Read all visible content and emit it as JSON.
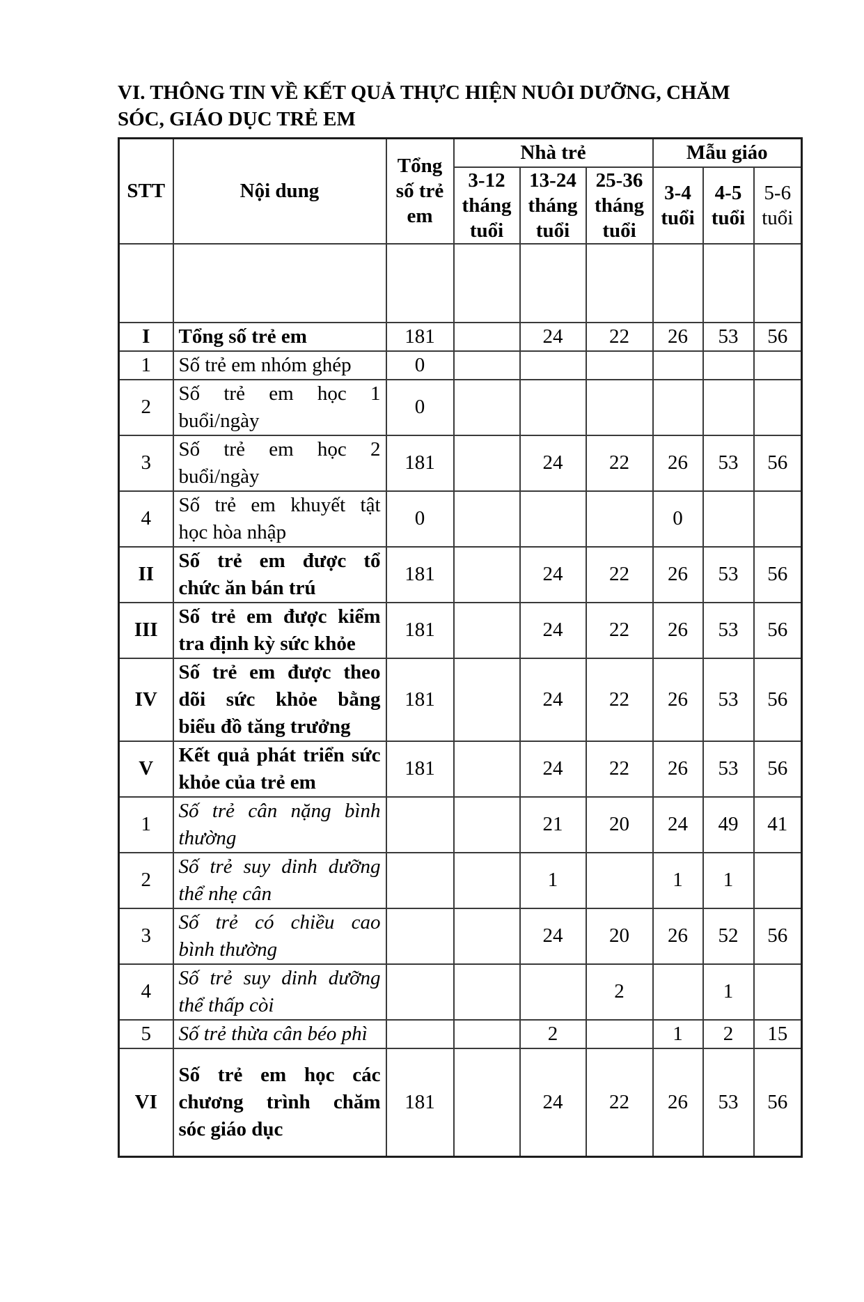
{
  "page": {
    "title_lines": [
      "VI. THÔNG TIN VỀ KẾT QUẢ THỰC HIỆN NUÔI DƯỠNG, CHĂM",
      "SÓC, GIÁO DỤC TRẺ EM"
    ]
  },
  "table": {
    "headers": {
      "stt": "STT",
      "noi_dung": "Nội dung",
      "tong_so_tre_em": "Tổng\nsố trẻ\nem",
      "nha_tre": "Nhà trẻ",
      "mau_giao": "Mẫu giáo",
      "age_cols": [
        "3-12\ntháng\ntuổi",
        "13-24\ntháng\ntuổi",
        "25-36\ntháng\ntuổi",
        "3-4\ntuổi",
        "4-5\ntuổi",
        "5-6\ntuổi"
      ]
    },
    "rows": [
      {
        "stt": "",
        "label": "",
        "lines": [],
        "style": "empty",
        "values": [
          "",
          "",
          "",
          "",
          "",
          "",
          ""
        ]
      },
      {
        "stt": "I",
        "label": "Tổng số trẻ em",
        "lines": [
          "Tổng số trẻ em"
        ],
        "style": "bold",
        "values": [
          "181",
          "",
          "24",
          "22",
          "26",
          "53",
          "56"
        ]
      },
      {
        "stt": "1",
        "label": "Số trẻ em nhóm ghép",
        "lines": [
          "Số trẻ em nhóm ghép"
        ],
        "style": "regular",
        "values": [
          "0",
          "",
          "",
          "",
          "",
          "",
          ""
        ]
      },
      {
        "stt": "2",
        "label": "Số trẻ em học 1 buổi/ngày",
        "lines": [
          "Số trẻ em học 1",
          "buổi/ngày"
        ],
        "style": "regular",
        "values": [
          "0",
          "",
          "",
          "",
          "",
          "",
          ""
        ]
      },
      {
        "stt": "3",
        "label": "Số trẻ em học 2 buổi/ngày",
        "lines": [
          "Số trẻ em học 2",
          "buổi/ngày"
        ],
        "style": "regular",
        "values": [
          "181",
          "",
          "24",
          "22",
          "26",
          "53",
          "56"
        ]
      },
      {
        "stt": "4",
        "label": "Số trẻ em khuyết tật học hòa nhập",
        "lines": [
          "Số trẻ em khuyết tật",
          "học hòa nhập"
        ],
        "style": "regular",
        "values": [
          "0",
          "",
          "",
          "",
          "0",
          "",
          ""
        ]
      },
      {
        "stt": "II",
        "label": "Số trẻ em được tổ chức ăn bán trú",
        "lines": [
          "Số trẻ em được tổ",
          "chức ăn bán trú"
        ],
        "style": "bold",
        "values": [
          "181",
          "",
          "24",
          "22",
          "26",
          "53",
          "56"
        ]
      },
      {
        "stt": "III",
        "label": "Số trẻ em được kiểm tra định kỳ sức khỏe",
        "lines": [
          "Số trẻ em được kiểm",
          "tra định kỳ sức khỏe"
        ],
        "style": "bold",
        "values": [
          "181",
          "",
          "24",
          "22",
          "26",
          "53",
          "56"
        ]
      },
      {
        "stt": "IV",
        "label": "Số trẻ em được theo dõi sức khỏe bằng biểu đồ tăng trưởng",
        "lines": [
          "Số trẻ em được theo",
          "dõi sức khỏe bằng",
          "biểu đồ tăng trưởng"
        ],
        "style": "bold",
        "values": [
          "181",
          "",
          "24",
          "22",
          "26",
          "53",
          "56"
        ]
      },
      {
        "stt": "V",
        "label": "Kết quả phát triển sức khỏe của trẻ em",
        "lines": [
          "Kết quả phát triển sức",
          "khỏe của trẻ em"
        ],
        "style": "bold",
        "values": [
          "181",
          "",
          "24",
          "22",
          "26",
          "53",
          "56"
        ]
      },
      {
        "stt": "1",
        "label": "Số trẻ cân nặng bình thường",
        "lines": [
          "Số trẻ cân nặng bình",
          "thường"
        ],
        "style": "italic",
        "values": [
          "",
          "",
          "21",
          "20",
          "24",
          "49",
          "41"
        ]
      },
      {
        "stt": "2",
        "label": "Số trẻ suy dinh dưỡng thể nhẹ cân",
        "lines": [
          "Số trẻ suy dinh dưỡng",
          "thể nhẹ cân"
        ],
        "style": "italic",
        "values": [
          "",
          "",
          "1",
          "",
          "1",
          "1",
          ""
        ]
      },
      {
        "stt": "3",
        "label": "Số trẻ có chiều cao bình thường",
        "lines": [
          "Số trẻ có chiều cao",
          "bình thường"
        ],
        "style": "italic",
        "values": [
          "",
          "",
          "24",
          "20",
          "26",
          "52",
          "56"
        ]
      },
      {
        "stt": "4",
        "label": "Số trẻ suy dinh dưỡng thể thấp còi",
        "lines": [
          "Số trẻ suy dinh dưỡng",
          "thể thấp còi"
        ],
        "style": "italic",
        "values": [
          "",
          "",
          "",
          "2",
          "",
          "1",
          ""
        ]
      },
      {
        "stt": "5",
        "label": "Số trẻ thừa cân béo phì",
        "lines": [
          "Số trẻ thừa cân béo phì"
        ],
        "style": "italic",
        "values": [
          "",
          "",
          "2",
          "",
          "1",
          "2",
          "15"
        ]
      },
      {
        "stt": "VI",
        "label": "Số trẻ em học các chương trình chăm sóc giáo dục",
        "lines": [
          "Số trẻ em học các",
          "chương trình chăm",
          "sóc giáo dục"
        ],
        "style": "bold",
        "values": [
          "181",
          "",
          "24",
          "22",
          "26",
          "53",
          "56"
        ]
      }
    ]
  }
}
